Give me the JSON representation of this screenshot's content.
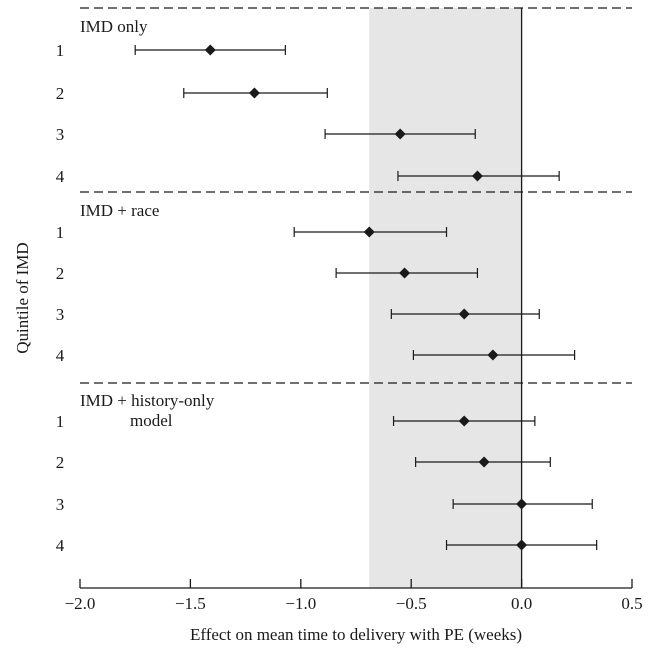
{
  "chart_data": {
    "type": "forest",
    "xlabel": "Effect on mean time to delivery with PE (weeks)",
    "ylabel": "Quintile of IMD",
    "xlim": [
      -2.0,
      0.5
    ],
    "xticks": [
      -2.0,
      -1.5,
      -1.0,
      -0.5,
      0.0,
      0.5
    ],
    "xtick_labels": [
      "−2.0",
      "−1.5",
      "−1.0",
      "−0.5",
      "0.0",
      "0.5"
    ],
    "reference_line": 0.0,
    "shaded_band": [
      -0.69,
      0.0
    ],
    "shaded_color": "#e6e6e7",
    "marker_color": "#1a1a1a",
    "panels": [
      {
        "title_lines": [
          "IMD only"
        ],
        "rows": [
          {
            "label": "1",
            "estimate": -1.41,
            "lower": -1.75,
            "upper": -1.07
          },
          {
            "label": "2",
            "estimate": -1.21,
            "lower": -1.53,
            "upper": -0.88
          },
          {
            "label": "3",
            "estimate": -0.55,
            "lower": -0.89,
            "upper": -0.21
          },
          {
            "label": "4",
            "estimate": -0.2,
            "lower": -0.56,
            "upper": 0.17
          }
        ]
      },
      {
        "title_lines": [
          "IMD + race"
        ],
        "rows": [
          {
            "label": "1",
            "estimate": -0.69,
            "lower": -1.03,
            "upper": -0.34
          },
          {
            "label": "2",
            "estimate": -0.53,
            "lower": -0.84,
            "upper": -0.2
          },
          {
            "label": "3",
            "estimate": -0.26,
            "lower": -0.59,
            "upper": 0.08
          },
          {
            "label": "4",
            "estimate": -0.13,
            "lower": -0.49,
            "upper": 0.24
          }
        ]
      },
      {
        "title_lines": [
          "IMD + history-only",
          "model"
        ],
        "rows": [
          {
            "label": "1",
            "estimate": -0.26,
            "lower": -0.58,
            "upper": 0.06
          },
          {
            "label": "2",
            "estimate": -0.17,
            "lower": -0.48,
            "upper": 0.13
          },
          {
            "label": "3",
            "estimate": 0.0,
            "lower": -0.31,
            "upper": 0.32
          },
          {
            "label": "4",
            "estimate": 0.0,
            "lower": -0.34,
            "upper": 0.34
          }
        ]
      }
    ]
  }
}
